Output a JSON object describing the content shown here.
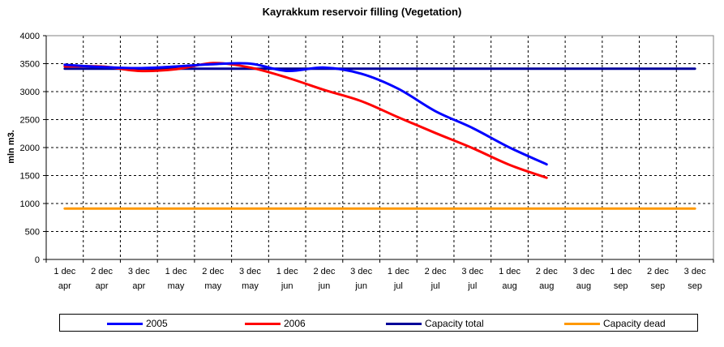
{
  "chart_data": {
    "type": "line",
    "title": "Kayrakkum reservoir filling  (Vegetation)",
    "xlabel": "",
    "ylabel": "mln m3.",
    "ylim": [
      0,
      4000
    ],
    "yticks": [
      0,
      500,
      1000,
      1500,
      2000,
      2500,
      3000,
      3500,
      4000
    ],
    "categories": [
      [
        "1 dec",
        "apr"
      ],
      [
        "2 dec",
        "apr"
      ],
      [
        "3 dec",
        "apr"
      ],
      [
        "1 dec",
        "may"
      ],
      [
        "2 dec",
        "may"
      ],
      [
        "3 dec",
        "may"
      ],
      [
        "1 dec",
        "jun"
      ],
      [
        "2 dec",
        "jun"
      ],
      [
        "3 dec",
        "jun"
      ],
      [
        "1 dec",
        "jul"
      ],
      [
        "2 dec",
        "jul"
      ],
      [
        "3 dec",
        "jul"
      ],
      [
        "1 dec",
        "aug"
      ],
      [
        "2 dec",
        "aug"
      ],
      [
        "3 dec",
        "aug"
      ],
      [
        "1 dec",
        "sep"
      ],
      [
        "2 dec",
        "sep"
      ],
      [
        "3 dec",
        "sep"
      ]
    ],
    "grid": true,
    "legend_position": "bottom",
    "series": [
      {
        "name": "2005",
        "color": "#0000ff",
        "values": [
          3480,
          3440,
          3420,
          3450,
          3490,
          3500,
          3370,
          3430,
          3320,
          3050,
          2650,
          2350,
          2000,
          1700,
          null,
          null,
          null,
          null
        ]
      },
      {
        "name": "2006",
        "color": "#ff0000",
        "values": [
          3450,
          3450,
          3370,
          3400,
          3510,
          3430,
          3250,
          3030,
          2830,
          2540,
          2260,
          1990,
          1690,
          1460,
          null,
          null,
          null,
          null
        ]
      },
      {
        "name": "Capacity total",
        "color": "#000099",
        "values": [
          3410,
          3410,
          3410,
          3410,
          3410,
          3410,
          3410,
          3410,
          3410,
          3410,
          3410,
          3410,
          3410,
          3410,
          3410,
          3410,
          3410,
          3410
        ]
      },
      {
        "name": "Capacity dead",
        "color": "#ff9900",
        "values": [
          910,
          910,
          910,
          910,
          910,
          910,
          910,
          910,
          910,
          910,
          910,
          910,
          910,
          910,
          910,
          910,
          910,
          910
        ]
      }
    ]
  }
}
